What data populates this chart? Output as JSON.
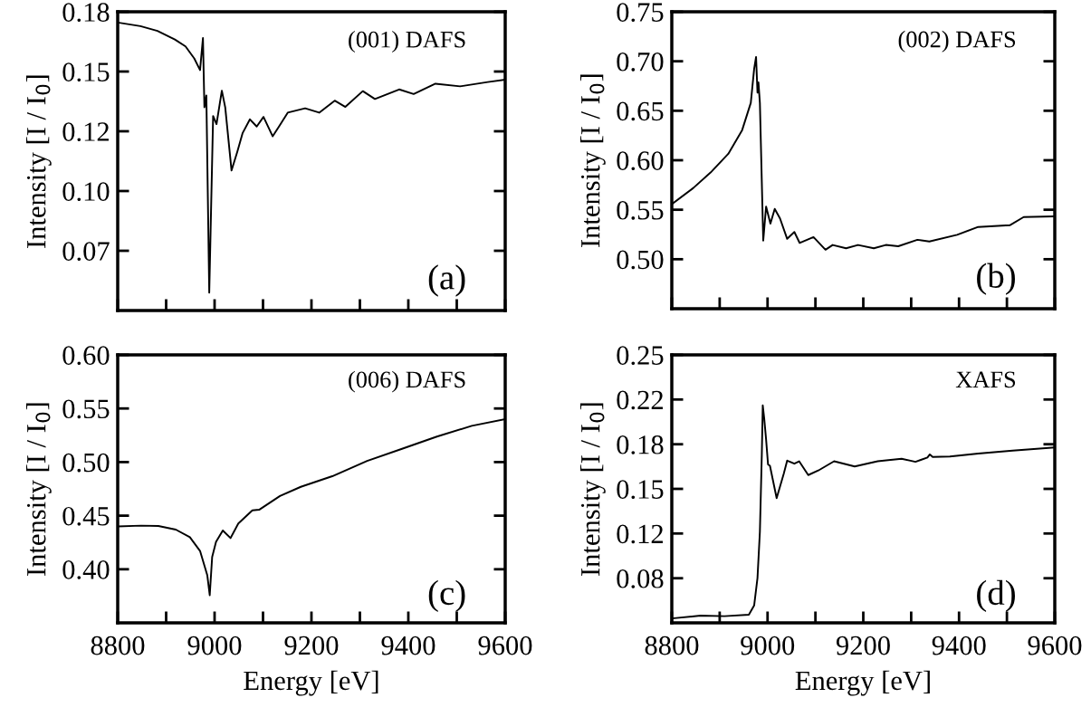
{
  "chart_data": [
    {
      "type": "line",
      "color": "#000000",
      "ylabel": "Intensity [I / I$_{0}$]",
      "annotations": [
        "(001) DAFS",
        "(a)"
      ],
      "tick_labels": "y",
      "xlim": [
        8800,
        9600
      ],
      "ylim": [
        0.05,
        0.175
      ],
      "xticks": [
        8800,
        {
          "value": 8900,
          "label": null
        },
        9000,
        {
          "value": 9100,
          "label": null
        },
        9200,
        {
          "value": 9300,
          "label": null
        },
        9400,
        {
          "value": 9500,
          "label": null
        },
        9600
      ],
      "yticks": [
        {
          "value": 0.075,
          "label": "0.07"
        },
        {
          "value": 0.1,
          "label": "0.10"
        },
        {
          "value": 0.125,
          "label": "0.12"
        },
        {
          "value": 0.15,
          "label": "0.15"
        },
        {
          "value": 0.175,
          "label": "0.18"
        }
      ],
      "x": [
        8800,
        8847,
        8882,
        8918,
        8940,
        8958,
        8970,
        8976,
        8979,
        8983,
        8989,
        8997,
        9004,
        9015,
        9022,
        9035,
        9047,
        9058,
        9073,
        9087,
        9101,
        9120,
        9133,
        9151,
        9187,
        9216,
        9248,
        9270,
        9306,
        9331,
        9381,
        9411,
        9456,
        9507,
        9564,
        9600
      ],
      "values": [
        0.1705,
        0.169,
        0.167,
        0.1634,
        0.1605,
        0.1555,
        0.1506,
        0.164,
        0.135,
        0.14,
        0.0575,
        0.1314,
        0.128,
        0.142,
        0.135,
        0.1086,
        0.1165,
        0.1243,
        0.13,
        0.127,
        0.131,
        0.1229,
        0.127,
        0.1328,
        0.1346,
        0.1328,
        0.1378,
        0.1352,
        0.1418,
        0.1385,
        0.1425,
        0.1406,
        0.1449,
        0.1438,
        0.1456,
        0.1466
      ]
    },
    {
      "type": "line",
      "color": "#000000",
      "ylabel": "Intensity [I / I$_{0}$]",
      "annotations": [
        "(002) DAFS",
        "(b)"
      ],
      "tick_labels": "y",
      "xlim": [
        8800,
        9600
      ],
      "ylim": [
        0.45,
        0.75
      ],
      "xticks": [
        8800,
        {
          "value": 8900,
          "label": null
        },
        9000,
        {
          "value": 9100,
          "label": null
        },
        9200,
        {
          "value": 9300,
          "label": null
        },
        9400,
        {
          "value": 9500,
          "label": null
        },
        9600
      ],
      "yticks": [
        {
          "value": 0.5,
          "label": "0.50"
        },
        0.55,
        {
          "value": 0.6,
          "label": "0.60"
        },
        0.65,
        {
          "value": 0.7,
          "label": "0.70"
        },
        0.75
      ],
      "x": [
        8800,
        8845,
        8881,
        8918,
        8947,
        8965,
        8972,
        8976,
        8979,
        8981,
        8984,
        8991,
        8997,
        9006,
        9015,
        9026,
        9041,
        9056,
        9067,
        9096,
        9121,
        9136,
        9164,
        9189,
        9222,
        9247,
        9273,
        9313,
        9338,
        9396,
        9440,
        9506,
        9535,
        9600
      ],
      "values": [
        0.5556,
        0.572,
        0.5876,
        0.6065,
        0.6305,
        0.658,
        0.6923,
        0.7043,
        0.6683,
        0.6786,
        0.658,
        0.5189,
        0.5532,
        0.536,
        0.5508,
        0.5412,
        0.5206,
        0.5275,
        0.5165,
        0.5223,
        0.5096,
        0.5144,
        0.511,
        0.5144,
        0.511,
        0.5144,
        0.5131,
        0.5196,
        0.5179,
        0.5247,
        0.5326,
        0.5343,
        0.5426,
        0.5433
      ]
    },
    {
      "type": "line",
      "color": "#000000",
      "ylabel": "Intensity [I / I$_{0}$]",
      "xlabel": "Energy [eV]",
      "annotations": [
        "(006) DAFS",
        "(c)"
      ],
      "xlim": [
        8800,
        9600
      ],
      "ylim": [
        0.35,
        0.6
      ],
      "xticks": [
        8800,
        {
          "value": 8900,
          "label": null
        },
        9000,
        {
          "value": 9100,
          "label": null
        },
        9200,
        {
          "value": 9300,
          "label": null
        },
        9400,
        {
          "value": 9500,
          "label": null
        },
        9600
      ],
      "yticks": [
        {
          "value": 0.4,
          "label": "0.40"
        },
        0.45,
        {
          "value": 0.5,
          "label": "0.50"
        },
        0.55,
        {
          "value": 0.6,
          "label": "0.60"
        }
      ],
      "x": [
        8800,
        8848,
        8884,
        8920,
        8949,
        8970,
        8985,
        8990,
        8995,
        9003,
        9017,
        9033,
        9049,
        9078,
        9092,
        9135,
        9178,
        9243,
        9315,
        9387,
        9459,
        9531,
        9600
      ],
      "values": [
        0.4399,
        0.4407,
        0.4404,
        0.437,
        0.4299,
        0.4171,
        0.3943,
        0.3758,
        0.4114,
        0.4256,
        0.4362,
        0.4291,
        0.4427,
        0.455,
        0.4555,
        0.4683,
        0.4769,
        0.4868,
        0.5011,
        0.5124,
        0.5238,
        0.5338,
        0.54
      ]
    },
    {
      "type": "line",
      "color": "#000000",
      "ylabel": "Intensity [I / I$_{0}$]",
      "xlabel": "Energy [eV]",
      "annotations": [
        "XAFS",
        "(d)"
      ],
      "xlim": [
        8800,
        9600
      ],
      "ylim": [
        0.05,
        0.25
      ],
      "xticks": [
        8800,
        {
          "value": 8900,
          "label": null
        },
        9000,
        {
          "value": 9100,
          "label": null
        },
        9200,
        {
          "value": 9300,
          "label": null
        },
        9400,
        {
          "value": 9500,
          "label": null
        },
        9600
      ],
      "yticks": [
        {
          "value": 0.0833,
          "label": "0.08"
        },
        {
          "value": 0.1167,
          "label": "0.12"
        },
        0.15,
        {
          "value": 0.1833,
          "label": "0.18"
        },
        {
          "value": 0.2167,
          "label": "0.22"
        },
        0.25
      ],
      "x": [
        8800,
        8860,
        8910,
        8961,
        8972,
        8979,
        8984,
        8988,
        8990,
        8993,
        8997,
        9001,
        9005,
        9019,
        9034,
        9041,
        9056,
        9066,
        9085,
        9106,
        9139,
        9182,
        9230,
        9280,
        9309,
        9334,
        9339,
        9345,
        9381,
        9440,
        9512,
        9600
      ],
      "values": [
        0.0533,
        0.0554,
        0.055,
        0.0561,
        0.063,
        0.0836,
        0.1179,
        0.1752,
        0.2123,
        0.2027,
        0.1867,
        0.1683,
        0.1672,
        0.1431,
        0.1615,
        0.1711,
        0.1688,
        0.1706,
        0.1603,
        0.1637,
        0.1706,
        0.1667,
        0.1706,
        0.1725,
        0.1702,
        0.1734,
        0.1757,
        0.1738,
        0.1741,
        0.1763,
        0.1786,
        0.1809
      ]
    }
  ]
}
